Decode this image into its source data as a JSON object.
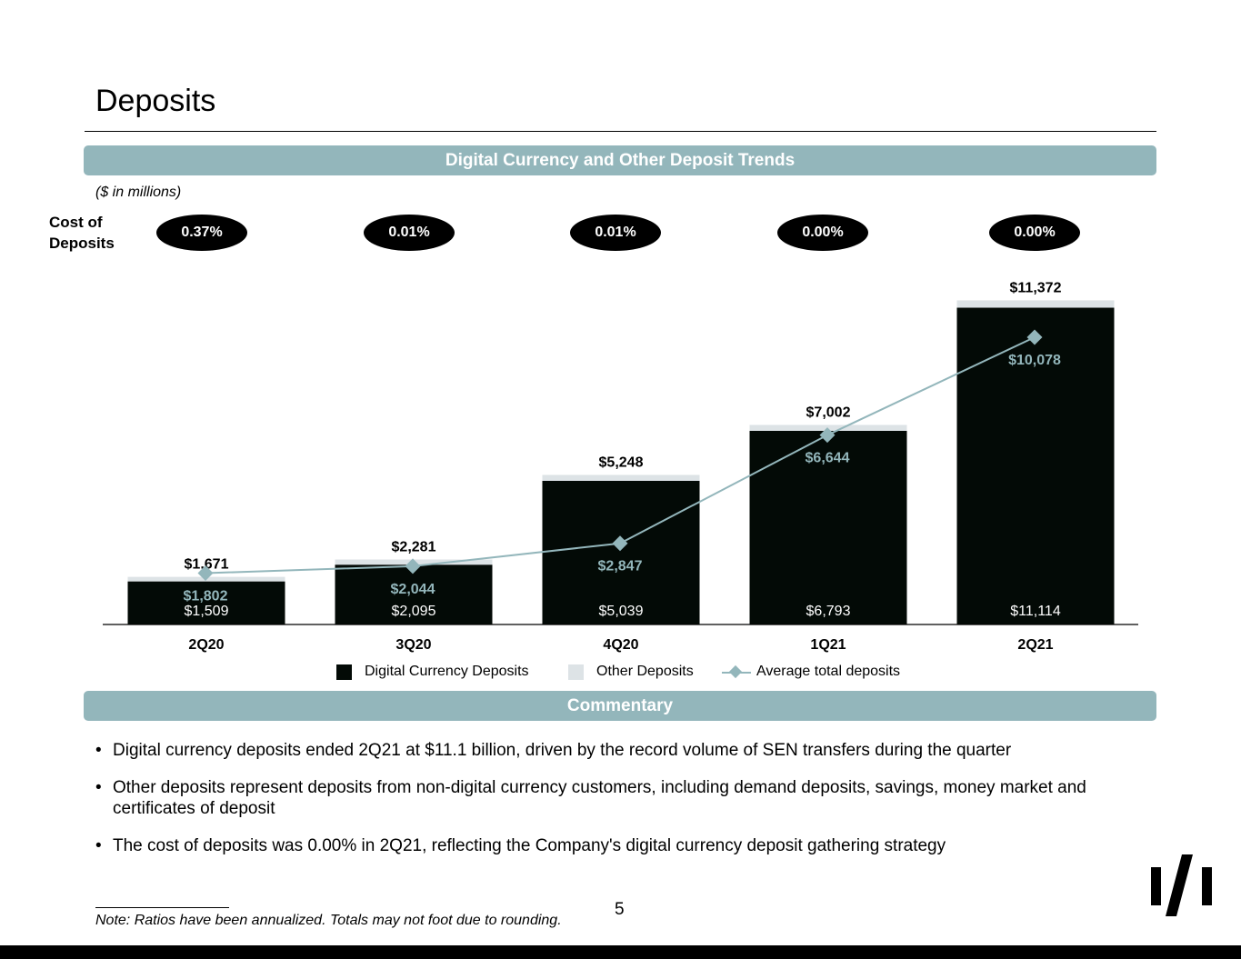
{
  "page": {
    "title": "Deposits",
    "section_header": "Digital Currency and Other Deposit Trends",
    "units_note": "($ in millions)",
    "cost_label": "Cost of\nDeposits",
    "cost_of_deposits": [
      "0.37%",
      "0.01%",
      "0.01%",
      "0.00%",
      "0.00%"
    ],
    "commentary_header": "Commentary",
    "commentary": [
      "Digital currency deposits ended 2Q21 at $11.1 billion, driven by the record volume of SEN transfers during the quarter",
      "Other deposits represent deposits from non-digital currency customers, including demand deposits, savings, money market and certificates of deposit",
      "The cost of deposits was 0.00% in 2Q21, reflecting the Company's digital currency deposit gathering strategy"
    ],
    "footnote": "Note: Ratios have been annualized. Totals may not foot due to rounding.",
    "page_number": "5",
    "logo_icon": "silvergate-logo-icon"
  },
  "colors": {
    "banner": "#93b6bb",
    "digital": "#030a06",
    "other": "#dde3e6",
    "average_line": "#93b6bb"
  },
  "chart_data": {
    "type": "bar",
    "stacked": true,
    "categories": [
      "2Q20",
      "3Q20",
      "4Q20",
      "1Q21",
      "2Q21"
    ],
    "series": [
      {
        "name": "Digital Currency Deposits",
        "type": "bar",
        "values": [
          1509,
          2095,
          5039,
          6793,
          11114
        ],
        "labels": [
          "$1,509",
          "$2,095",
          "$5,039",
          "$6,793",
          "$11,114"
        ]
      },
      {
        "name": "Other Deposits",
        "type": "bar",
        "values": [
          162,
          186,
          209,
          209,
          258
        ]
      },
      {
        "name": "Average total deposits",
        "type": "line",
        "values": [
          1802,
          2044,
          2847,
          6644,
          10078
        ],
        "labels": [
          "$1,802",
          "$2,044",
          "$2,847",
          "$6,644",
          "$10,078"
        ]
      }
    ],
    "totals": [
      1671,
      2281,
      5248,
      7002,
      11372
    ],
    "total_labels": [
      "$1,671",
      "$2,281",
      "$5,248",
      "$7,002",
      "$11,372"
    ],
    "legend_position": "bottom",
    "grid": false,
    "ylim": [
      0,
      11800
    ]
  }
}
